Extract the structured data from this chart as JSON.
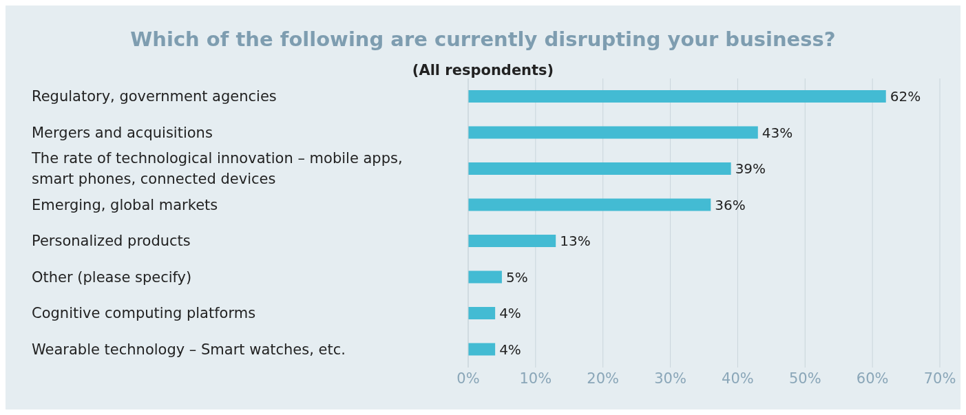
{
  "chart_data": {
    "type": "bar",
    "orientation": "horizontal",
    "title": "Which of the following are currently disrupting your business?",
    "subtitle": "(All respondents)",
    "categories": [
      "Regulatory, government agencies",
      "Mergers and acquisitions",
      "The rate of technological innovation – mobile apps, smart phones, connected devices",
      "Emerging, global markets",
      "Personalized products",
      "Other (please specify)",
      "Cognitive computing platforms",
      "Wearable technology – Smart watches, etc."
    ],
    "values": [
      62,
      43,
      39,
      36,
      13,
      5,
      4,
      4
    ],
    "value_labels": [
      "62%",
      "43%",
      "39%",
      "36%",
      "13%",
      "5%",
      "4%",
      "4%"
    ],
    "color": "#43bbd3",
    "xlim": [
      0,
      70
    ],
    "xticks": [
      {
        "value": 0,
        "label": "0%"
      },
      {
        "value": 10,
        "label": "10%"
      },
      {
        "value": 20,
        "label": "20%"
      },
      {
        "value": 30,
        "label": "30%"
      },
      {
        "value": 40,
        "label": "40%"
      },
      {
        "value": 50,
        "label": "50%"
      },
      {
        "value": 60,
        "label": "60%"
      },
      {
        "value": 70,
        "label": "70%"
      }
    ],
    "grid": "x"
  }
}
